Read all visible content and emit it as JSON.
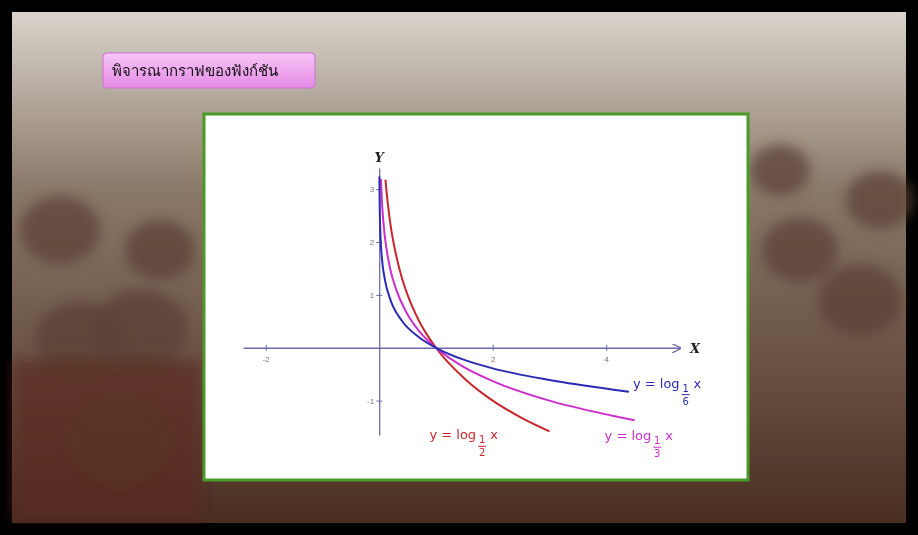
{
  "chart_data": {
    "type": "line",
    "title": "พิจารณากราฟของฟังก์ชัน",
    "x_label": "X",
    "y_label": "Y",
    "xlim": [
      -2.4,
      5.3
    ],
    "ylim": [
      -1.65,
      3.4
    ],
    "xticks": [
      -2,
      2,
      4
    ],
    "yticks": [
      -1,
      1,
      2,
      3
    ],
    "series": [
      {
        "name": "y = log",
        "base": {
          "numerator": 1,
          "denominator": 2
        },
        "arg": "x",
        "color": "#c8262c",
        "x": [
          0.11,
          0.15,
          0.2,
          0.3,
          0.4,
          0.5,
          0.7,
          1,
          1.5,
          2,
          2.5,
          3
        ],
        "values": [
          3.18,
          2.74,
          2.32,
          1.74,
          1.32,
          1,
          0.51,
          0,
          -0.58,
          -1,
          -1.32,
          -1.58
        ]
      },
      {
        "name": "y = log",
        "base": {
          "numerator": 1,
          "denominator": 3
        },
        "arg": "x",
        "color": "#cc2ecc",
        "x": [
          0.03,
          0.05,
          0.08,
          0.12,
          0.2,
          0.3,
          0.5,
          0.7,
          1,
          1.5,
          2,
          3,
          4,
          4.5
        ],
        "values": [
          3.19,
          2.73,
          2.3,
          1.93,
          1.46,
          1.1,
          0.63,
          0.32,
          0,
          -0.37,
          -0.63,
          -1,
          -1.26,
          -1.37
        ]
      },
      {
        "name": "y = log",
        "base": {
          "numerator": 1,
          "denominator": 6
        },
        "arg": "x",
        "color": "#2a2ab4",
        "x": [
          0.003,
          0.01,
          0.02,
          0.05,
          0.1,
          0.2,
          0.4,
          0.7,
          1,
          1.5,
          2,
          3,
          4.4
        ],
        "values": [
          3.24,
          2.57,
          2.18,
          1.67,
          1.29,
          0.9,
          0.51,
          0.2,
          0,
          -0.23,
          -0.39,
          -0.61,
          -0.83
        ]
      }
    ]
  }
}
